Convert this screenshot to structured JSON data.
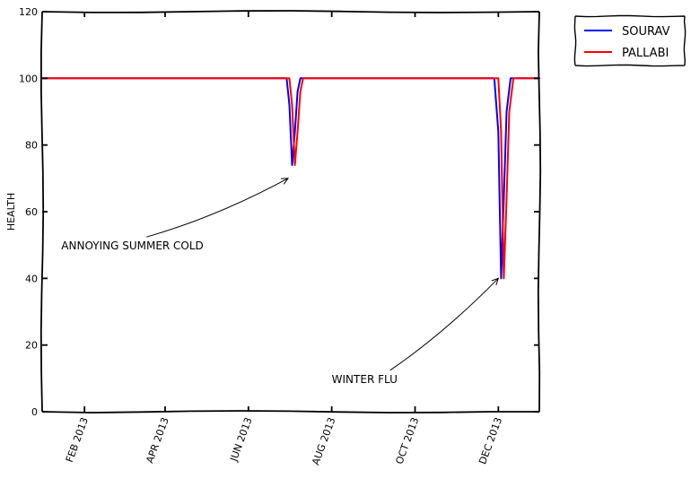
{
  "chart_data": {
    "type": "line",
    "title": "",
    "xlabel": "",
    "ylabel": "HEALTH",
    "xlim": [
      "2013-01-01",
      "2013-12-31"
    ],
    "ylim": [
      0,
      120
    ],
    "y_ticks": [
      0,
      20,
      40,
      60,
      80,
      100,
      120
    ],
    "x_ticks": [
      {
        "date": "2013-02-01",
        "label": "FEB 2013"
      },
      {
        "date": "2013-04-01",
        "label": "APR 2013"
      },
      {
        "date": "2013-06-01",
        "label": "JUN 2013"
      },
      {
        "date": "2013-08-01",
        "label": "AUG 2013"
      },
      {
        "date": "2013-10-01",
        "label": "OCT 2013"
      },
      {
        "date": "2013-12-01",
        "label": "DEC 2013"
      }
    ],
    "grid": false,
    "legend": "top-right, outside plot",
    "series": [
      {
        "name": "SOURAV",
        "color": "#0000ff",
        "points": [
          [
            "2013-01-01",
            100
          ],
          [
            "2013-06-29",
            100
          ],
          [
            "2013-07-01",
            92
          ],
          [
            "2013-07-03",
            74
          ],
          [
            "2013-07-05",
            84
          ],
          [
            "2013-07-07",
            96
          ],
          [
            "2013-07-09",
            100
          ],
          [
            "2013-11-28",
            100
          ],
          [
            "2013-12-01",
            84
          ],
          [
            "2013-12-03",
            40
          ],
          [
            "2013-12-05",
            64
          ],
          [
            "2013-12-07",
            90
          ],
          [
            "2013-12-10",
            100
          ],
          [
            "2013-12-31",
            100
          ]
        ]
      },
      {
        "name": "PALLABI",
        "color": "#ff0000",
        "points": [
          [
            "2013-01-01",
            100
          ],
          [
            "2013-07-01",
            100
          ],
          [
            "2013-07-03",
            92
          ],
          [
            "2013-07-05",
            74
          ],
          [
            "2013-07-07",
            84
          ],
          [
            "2013-07-09",
            96
          ],
          [
            "2013-07-11",
            100
          ],
          [
            "2013-12-01",
            100
          ],
          [
            "2013-12-03",
            84
          ],
          [
            "2013-12-05",
            40
          ],
          [
            "2013-12-07",
            64
          ],
          [
            "2013-12-09",
            90
          ],
          [
            "2013-12-12",
            100
          ],
          [
            "2013-12-31",
            100
          ]
        ]
      }
    ],
    "annotations": [
      {
        "text": "ANNOYING SUMMER COLD",
        "point": [
          "2013-06-30",
          70
        ],
        "text_at": [
          "2013-01-15",
          50
        ]
      },
      {
        "text": "WINTER FLU",
        "point": [
          "2013-12-01",
          40
        ],
        "text_at": [
          "2013-08-01",
          10
        ]
      }
    ]
  }
}
